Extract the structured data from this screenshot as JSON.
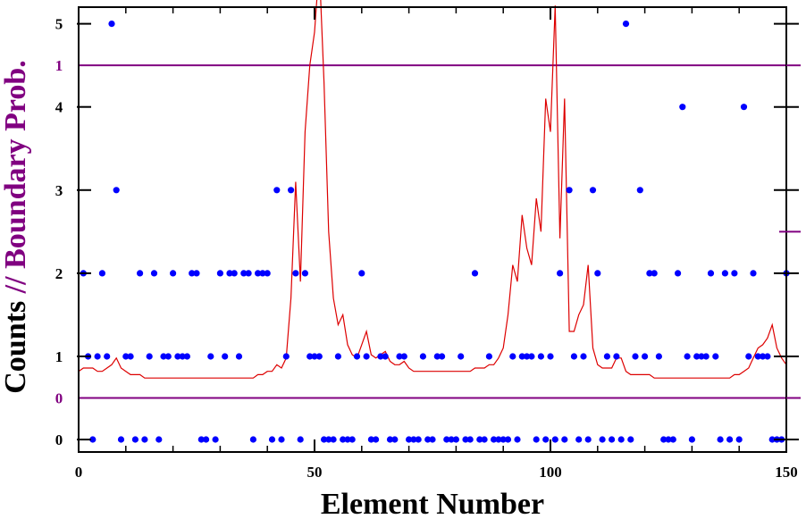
{
  "chart_data": {
    "type": "scatter",
    "title": "",
    "xlabel": "Element Number",
    "ylabel_parts": [
      "Counts",
      " // ",
      "Boundary Prob."
    ],
    "xlim": [
      0,
      150
    ],
    "ylim": [
      -0.15,
      5.2
    ],
    "x_ticks": [
      0,
      50,
      100,
      150
    ],
    "y_ticks": [
      0,
      1,
      2,
      3,
      4,
      5
    ],
    "prob_ticks": [
      {
        "label": "0",
        "value": 0
      },
      {
        "label": "1",
        "value": 1
      }
    ],
    "prob_axis_map": {
      "zero_at_count": 0.5,
      "one_at_count": 4.5
    },
    "grid": false,
    "colors": {
      "points": "#0000ff",
      "line": "#dd0000",
      "prob_axis": "#800080",
      "axes": "#000000"
    },
    "series": [
      {
        "type": "scatter",
        "x": [
          1,
          2,
          3,
          4,
          5,
          6,
          7,
          8,
          9,
          10,
          11,
          12,
          13,
          14,
          15,
          16,
          17,
          18,
          19,
          20,
          21,
          22,
          23,
          24,
          25,
          26,
          27,
          28,
          29,
          30,
          31,
          32,
          33,
          34,
          35,
          36,
          37,
          38,
          39,
          40,
          41,
          42,
          43,
          44,
          45,
          46,
          47,
          48,
          49,
          50,
          51,
          52,
          53,
          54,
          55,
          56,
          57,
          58,
          59,
          60,
          61,
          62,
          63,
          64,
          65,
          66,
          67,
          68,
          69,
          70,
          71,
          72,
          73,
          74,
          75,
          76,
          77,
          78,
          79,
          80,
          81,
          82,
          83,
          84,
          85,
          86,
          87,
          88,
          89,
          90,
          91,
          92,
          93,
          94,
          95,
          96,
          97,
          98,
          99,
          100,
          101,
          102,
          103,
          104,
          105,
          106,
          107,
          108,
          109,
          110,
          111,
          112,
          113,
          114,
          115,
          116,
          117,
          118,
          119,
          120,
          121,
          122,
          123,
          124,
          125,
          126,
          127,
          128,
          129,
          130,
          131,
          132,
          133,
          134,
          135,
          136,
          137,
          138,
          139,
          140,
          141,
          142,
          143,
          144,
          145,
          146,
          147,
          148,
          149,
          150
        ],
        "y": [
          2,
          1,
          0,
          1,
          2,
          1,
          5,
          3,
          0,
          1,
          1,
          0,
          2,
          0,
          1,
          2,
          0,
          1,
          1,
          2,
          1,
          1,
          1,
          2,
          2,
          0,
          0,
          1,
          0,
          2,
          1,
          2,
          2,
          1,
          2,
          2,
          0,
          2,
          2,
          2,
          0,
          3,
          0,
          1,
          3,
          2,
          0,
          2,
          1,
          1,
          1,
          0,
          0,
          0,
          1,
          0,
          0,
          0,
          1,
          2,
          1,
          0,
          0,
          1,
          1,
          0,
          0,
          1,
          1,
          0,
          0,
          0,
          1,
          0,
          0,
          1,
          1,
          0,
          0,
          0,
          1,
          0,
          0,
          2,
          0,
          0,
          1,
          0,
          0,
          0,
          0,
          1,
          0,
          1,
          1,
          1,
          0,
          1,
          0,
          1,
          0,
          2,
          0,
          3,
          1,
          0,
          1,
          0,
          3,
          2,
          0,
          1,
          0,
          1,
          0,
          5,
          0,
          1,
          3,
          1,
          2,
          2,
          1,
          0,
          0,
          0,
          2,
          4,
          1,
          0,
          1,
          1,
          1,
          2,
          1,
          0,
          2,
          0,
          2,
          0,
          4,
          1,
          2,
          1,
          1,
          1,
          0,
          0,
          0,
          2
        ]
      },
      {
        "type": "line",
        "x": [
          0,
          1,
          2,
          3,
          4,
          5,
          6,
          7,
          8,
          9,
          10,
          11,
          12,
          13,
          14,
          15,
          16,
          17,
          18,
          19,
          20,
          21,
          22,
          23,
          24,
          25,
          26,
          27,
          28,
          29,
          30,
          31,
          32,
          33,
          34,
          35,
          36,
          37,
          38,
          39,
          40,
          41,
          42,
          43,
          44,
          45,
          46,
          47,
          48,
          49,
          50,
          51,
          52,
          53,
          54,
          55,
          56,
          57,
          58,
          59,
          60,
          61,
          62,
          63,
          64,
          65,
          66,
          67,
          68,
          69,
          70,
          71,
          72,
          73,
          74,
          75,
          76,
          77,
          78,
          79,
          80,
          81,
          82,
          83,
          84,
          85,
          86,
          87,
          88,
          89,
          90,
          91,
          92,
          93,
          94,
          95,
          96,
          97,
          98,
          99,
          100,
          101,
          102,
          103,
          104,
          105,
          106,
          107,
          108,
          109,
          110,
          111,
          112,
          113,
          114,
          115,
          116,
          117,
          118,
          119,
          120,
          121,
          122,
          123,
          124,
          125,
          126,
          127,
          128,
          129,
          130,
          131,
          132,
          133,
          134,
          135,
          136,
          137,
          138,
          139,
          140,
          141,
          142,
          143,
          144,
          145,
          146,
          147,
          148,
          149,
          150
        ],
        "y": [
          0.08,
          0.09,
          0.09,
          0.09,
          0.08,
          0.08,
          0.09,
          0.1,
          0.12,
          0.09,
          0.08,
          0.07,
          0.07,
          0.07,
          0.06,
          0.06,
          0.06,
          0.06,
          0.06,
          0.06,
          0.06,
          0.06,
          0.06,
          0.06,
          0.06,
          0.06,
          0.06,
          0.06,
          0.06,
          0.06,
          0.06,
          0.06,
          0.06,
          0.06,
          0.06,
          0.06,
          0.06,
          0.06,
          0.07,
          0.07,
          0.08,
          0.08,
          0.1,
          0.09,
          0.12,
          0.3,
          0.65,
          0.35,
          0.8,
          1.0,
          1.1,
          1.3,
          0.95,
          0.5,
          0.3,
          0.22,
          0.25,
          0.16,
          0.13,
          0.12,
          0.16,
          0.2,
          0.13,
          0.12,
          0.13,
          0.14,
          0.11,
          0.1,
          0.1,
          0.11,
          0.09,
          0.08,
          0.08,
          0.08,
          0.08,
          0.08,
          0.08,
          0.08,
          0.08,
          0.08,
          0.08,
          0.08,
          0.08,
          0.08,
          0.09,
          0.09,
          0.09,
          0.1,
          0.1,
          0.12,
          0.15,
          0.25,
          0.4,
          0.35,
          0.55,
          0.45,
          0.4,
          0.6,
          0.5,
          0.9,
          0.8,
          1.18,
          0.48,
          0.9,
          0.2,
          0.2,
          0.25,
          0.28,
          0.4,
          0.15,
          0.1,
          0.09,
          0.09,
          0.09,
          0.12,
          0.12,
          0.08,
          0.07,
          0.07,
          0.07,
          0.07,
          0.07,
          0.06,
          0.06,
          0.06,
          0.06,
          0.06,
          0.06,
          0.06,
          0.06,
          0.06,
          0.06,
          0.06,
          0.06,
          0.06,
          0.06,
          0.06,
          0.06,
          0.06,
          0.07,
          0.07,
          0.08,
          0.09,
          0.12,
          0.15,
          0.16,
          0.18,
          0.22,
          0.15,
          0.12,
          0.1
        ]
      }
    ]
  }
}
